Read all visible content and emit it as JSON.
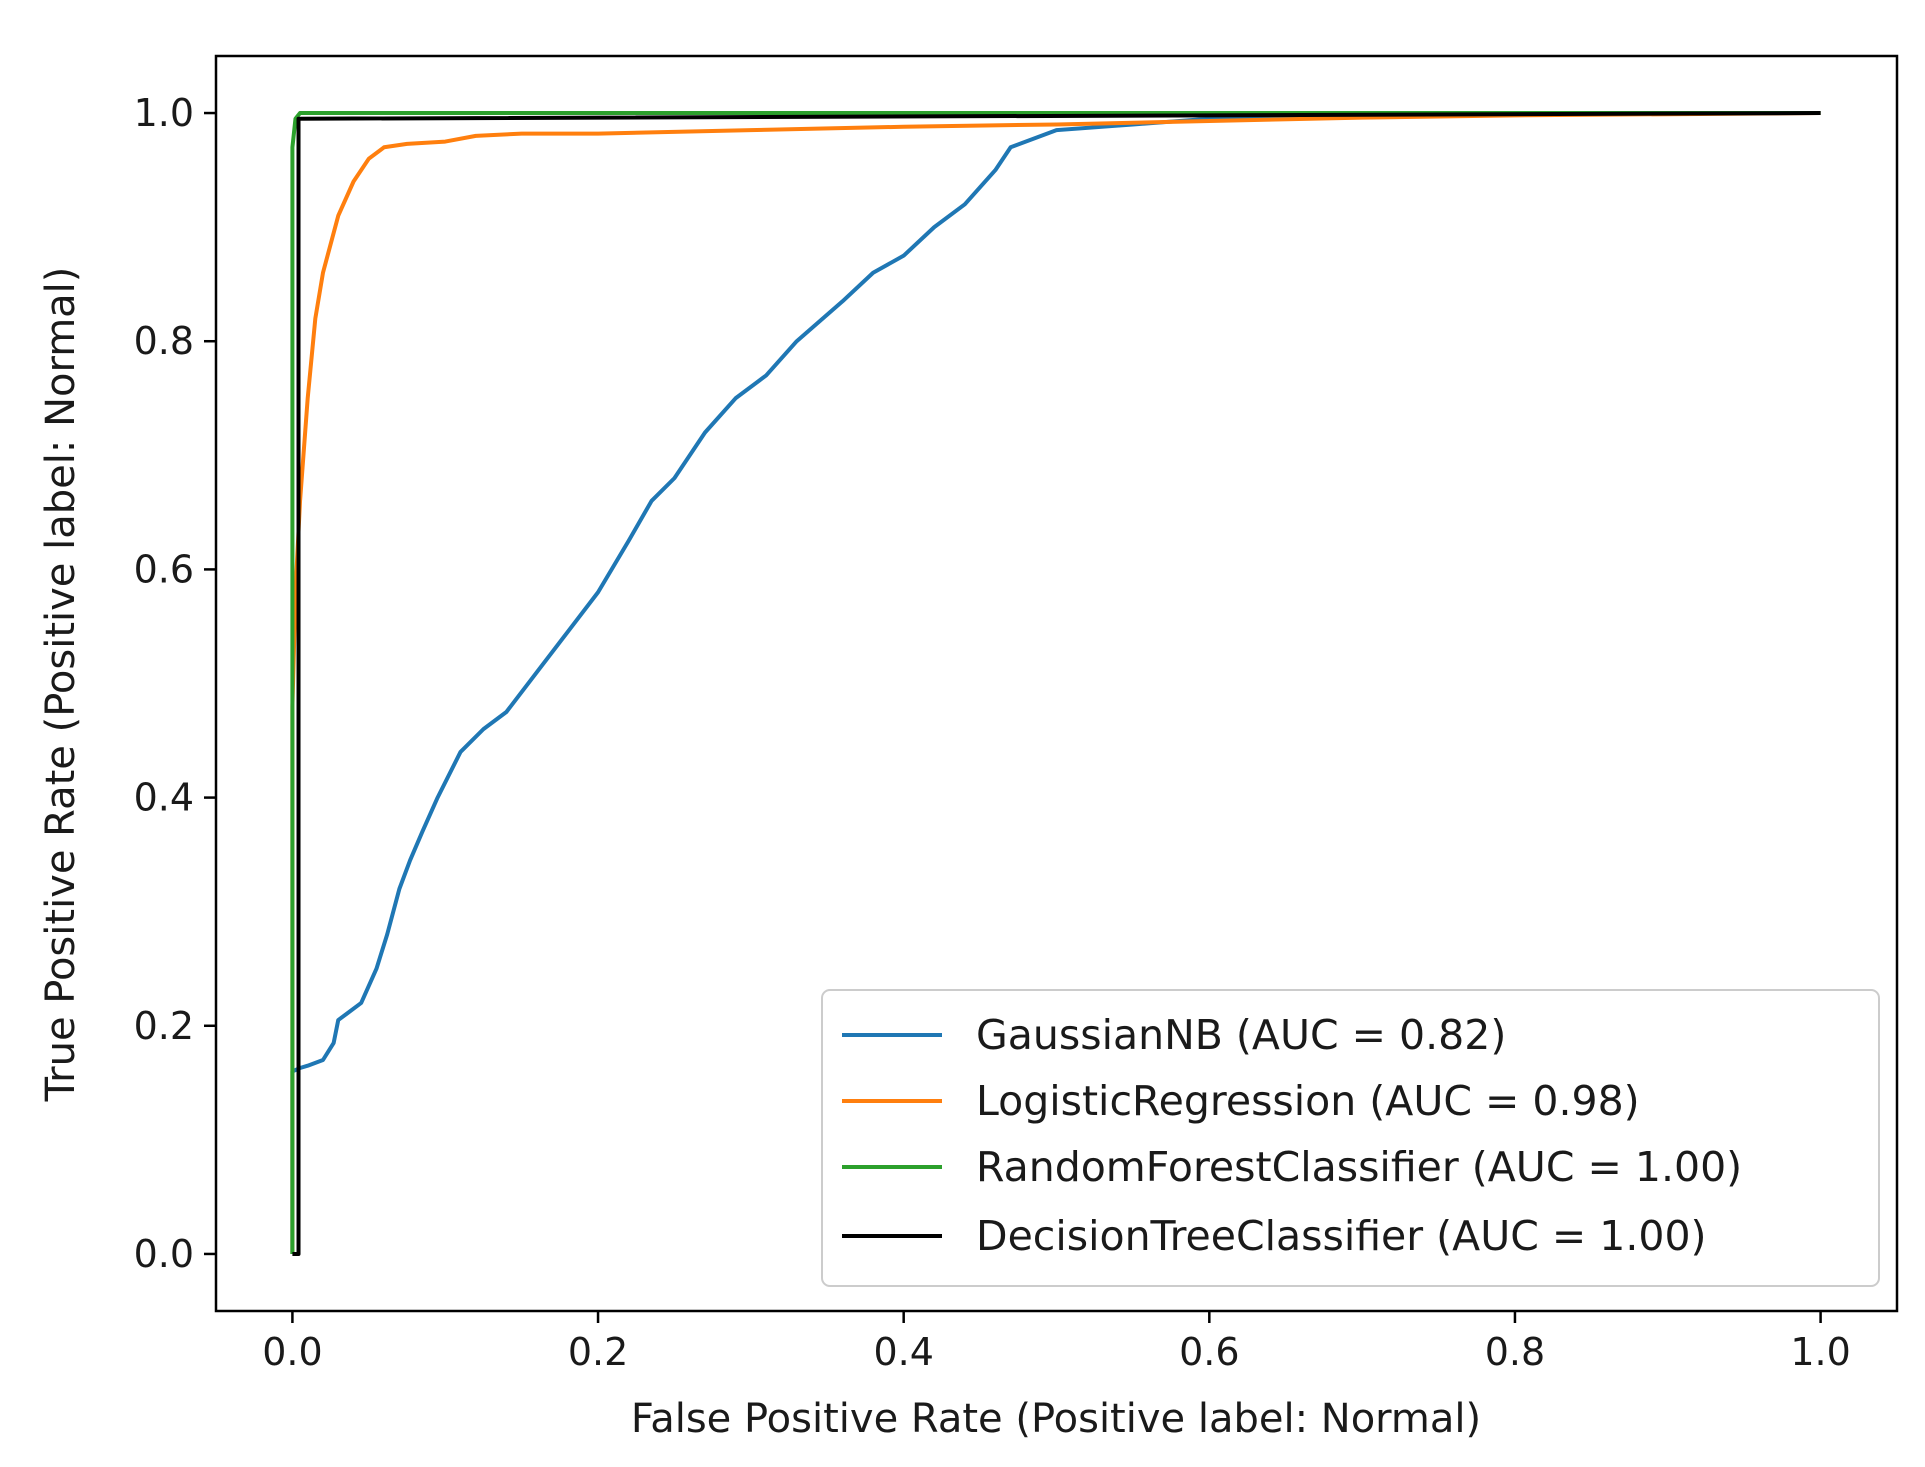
{
  "chart_data": {
    "type": "line",
    "title": "",
    "xlabel": "False Positive Rate (Positive label: Normal)",
    "ylabel": "True Positive Rate (Positive label: Normal)",
    "xlim": [
      -0.05,
      1.05
    ],
    "ylim": [
      -0.05,
      1.05
    ],
    "xticks": [
      0.0,
      0.2,
      0.4,
      0.6,
      0.8,
      1.0
    ],
    "xtick_labels": [
      "0.0",
      "0.2",
      "0.4",
      "0.6",
      "0.8",
      "1.0"
    ],
    "yticks": [
      0.0,
      0.2,
      0.4,
      0.6,
      0.8,
      1.0
    ],
    "ytick_labels": [
      "0.0",
      "0.2",
      "0.4",
      "0.6",
      "0.8",
      "1.0"
    ],
    "grid": false,
    "legend_position": "lower-right",
    "series": [
      {
        "name": "GaussianNB (AUC = 0.82)",
        "color": "#1f77b4",
        "x": [
          0.0,
          0.0,
          0.005,
          0.01,
          0.02,
          0.027,
          0.03,
          0.035,
          0.045,
          0.055,
          0.062,
          0.07,
          0.077,
          0.085,
          0.095,
          0.11,
          0.125,
          0.14,
          0.16,
          0.18,
          0.2,
          0.22,
          0.235,
          0.25,
          0.27,
          0.29,
          0.31,
          0.33,
          0.36,
          0.38,
          0.4,
          0.42,
          0.44,
          0.46,
          0.47,
          0.5,
          0.55,
          0.6,
          0.7,
          0.8,
          0.9,
          1.0
        ],
        "y": [
          0.0,
          0.16,
          0.163,
          0.165,
          0.17,
          0.185,
          0.205,
          0.21,
          0.22,
          0.25,
          0.28,
          0.32,
          0.345,
          0.37,
          0.4,
          0.44,
          0.46,
          0.475,
          0.51,
          0.545,
          0.58,
          0.625,
          0.66,
          0.68,
          0.72,
          0.75,
          0.77,
          0.8,
          0.835,
          0.86,
          0.875,
          0.9,
          0.92,
          0.95,
          0.97,
          0.985,
          0.99,
          0.995,
          0.998,
          1.0,
          1.0,
          1.0
        ]
      },
      {
        "name": "LogisticRegression (AUC = 0.98)",
        "color": "#ff7f0e",
        "x": [
          0.0,
          0.0,
          0.002,
          0.005,
          0.01,
          0.015,
          0.02,
          0.03,
          0.04,
          0.05,
          0.06,
          0.075,
          0.1,
          0.12,
          0.15,
          0.2,
          0.3,
          0.4,
          0.5,
          0.6,
          0.7,
          0.8,
          0.9,
          1.0
        ],
        "y": [
          0.0,
          0.48,
          0.58,
          0.66,
          0.75,
          0.82,
          0.86,
          0.91,
          0.94,
          0.96,
          0.97,
          0.973,
          0.975,
          0.98,
          0.982,
          0.982,
          0.985,
          0.988,
          0.99,
          0.993,
          0.996,
          0.998,
          0.999,
          1.0
        ]
      },
      {
        "name": "RandomForestClassifier (AUC = 1.00)",
        "color": "#2ca02c",
        "x": [
          0.0,
          0.0,
          0.002,
          0.005,
          0.01,
          1.0
        ],
        "y": [
          0.0,
          0.97,
          0.995,
          1.0,
          1.0,
          1.0
        ]
      },
      {
        "name": "DecisionTreeClassifier (AUC = 1.00)",
        "color": "#000000",
        "x": [
          0.0,
          0.004,
          0.004,
          1.0
        ],
        "y": [
          0.0,
          0.0,
          0.995,
          1.0
        ]
      }
    ]
  }
}
